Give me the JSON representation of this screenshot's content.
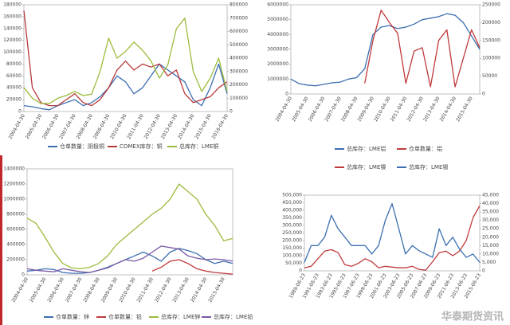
{
  "chart_data": [
    {
      "type": "line",
      "categories": [
        "2004-04-30",
        null,
        "2005-04-30",
        null,
        "2006-04-30",
        null,
        "2007-04-30",
        null,
        "2008-04-30",
        null,
        "2009-04-30",
        null,
        "2010-04-30",
        null,
        "2011-04-30",
        null,
        "2012-04-30",
        null,
        "2013-04-30",
        null,
        "2014-04-30",
        null,
        "2015-04-30",
        null,
        "2016-04-30"
      ],
      "ylim": [
        0,
        180000
      ],
      "yticks": [
        0,
        20000,
        40000,
        60000,
        80000,
        100000,
        120000,
        140000,
        160000,
        180000
      ],
      "y2lim": [
        0,
        800000
      ],
      "y2ticks": [
        0,
        100000,
        200000,
        300000,
        400000,
        500000,
        600000,
        700000,
        800000
      ],
      "legend": "bottom",
      "series": [
        {
          "name": "仓单数量：阴极铜",
          "color": "#3c6fb0",
          "values": [
            10000,
            8000,
            5000,
            3000,
            10000,
            15000,
            20000,
            10000,
            15000,
            25000,
            40000,
            60000,
            50000,
            30000,
            40000,
            60000,
            80000,
            70000,
            60000,
            50000,
            20000,
            10000,
            40000,
            80000,
            30000
          ]
        },
        {
          "name": "COMEX库存：铜",
          "color": "#b8383a",
          "values": [
            170000,
            40000,
            15000,
            10000,
            10000,
            20000,
            30000,
            15000,
            10000,
            20000,
            40000,
            70000,
            85000,
            70000,
            80000,
            75000,
            80000,
            60000,
            70000,
            30000,
            15000,
            20000,
            25000,
            40000,
            50000
          ]
        },
        {
          "name": "总库存：LME铜",
          "color": "#9bbb3b",
          "axis": "y2",
          "values": [
            180000,
            100000,
            60000,
            60000,
            100000,
            120000,
            150000,
            120000,
            130000,
            300000,
            550000,
            400000,
            450000,
            520000,
            460000,
            380000,
            250000,
            350000,
            620000,
            700000,
            300000,
            150000,
            250000,
            400000,
            150000
          ]
        }
      ]
    },
    {
      "type": "line",
      "categories": [
        "2004-04-30",
        null,
        "2005-04-30",
        null,
        "2006-04-30",
        null,
        "2007-04-30",
        null,
        "2008-04-30",
        null,
        "2009-04-30",
        null,
        "2010-04-30",
        null,
        "2011-04-30",
        null,
        "2012-04-30",
        null,
        "2013-04-30",
        null,
        "2014-04-30",
        null,
        "2015-04-30",
        null
      ],
      "ylim": [
        0,
        6000000
      ],
      "yticks": [
        0,
        1000000,
        2000000,
        3000000,
        4000000,
        5000000,
        6000000
      ],
      "y2lim": [
        0,
        250000
      ],
      "y2ticks": [
        0,
        50000,
        100000,
        150000,
        200000,
        250000
      ],
      "legend": "bottom",
      "series": [
        {
          "name": "总库存：LME铝",
          "color": "#3c6fb0",
          "values": [
            1000000,
            700000,
            600000,
            550000,
            650000,
            750000,
            800000,
            1000000,
            1100000,
            1700000,
            4000000,
            4500000,
            4600000,
            4400000,
            4500000,
            4700000,
            5000000,
            5100000,
            5200000,
            5400000,
            5300000,
            4800000,
            3900000,
            3000000
          ]
        },
        {
          "name": "仓单数量：铝",
          "color": "#c0393b",
          "axis": "y2",
          "values": [
            null,
            null,
            null,
            null,
            null,
            null,
            null,
            null,
            null,
            30000,
            150000,
            235000,
            200000,
            170000,
            30000,
            120000,
            130000,
            20000,
            150000,
            180000,
            20000,
            100000,
            180000,
            130000
          ]
        }
      ]
    },
    {
      "type": "line",
      "categories": [
        "2004-04-30",
        null,
        "2005-04-30",
        null,
        "2006-04-30",
        null,
        "2007-04-30",
        null,
        "2008-04-30",
        null,
        "2009-04-30",
        null,
        "2010-04-30",
        null,
        "2011-04-30",
        null,
        "2012-04-30",
        null,
        "2013-04-30",
        null,
        "2014-04-30",
        null,
        "2015-04-30",
        null
      ],
      "ylim": [
        0,
        1400000
      ],
      "yticks": [
        0,
        200000,
        400000,
        600000,
        800000,
        1000000,
        1200000,
        1400000
      ],
      "legend": "bottom",
      "series": [
        {
          "name": "仓单数量：锌",
          "color": "#3c6fb0",
          "values": [
            50000,
            60000,
            80000,
            70000,
            30000,
            20000,
            20000,
            30000,
            60000,
            100000,
            150000,
            200000,
            250000,
            300000,
            250000,
            180000,
            300000,
            350000,
            320000,
            280000,
            200000,
            150000,
            180000,
            150000
          ]
        },
        {
          "name": "仓单数量：铅",
          "color": "#c0393b",
          "values": [
            null,
            null,
            null,
            null,
            null,
            null,
            null,
            null,
            null,
            null,
            null,
            null,
            null,
            null,
            50000,
            100000,
            180000,
            200000,
            150000,
            80000,
            50000,
            30000,
            20000,
            10000
          ]
        },
        {
          "name": "总库存：LME锌",
          "color": "#9bbb3b",
          "values": [
            750000,
            680000,
            500000,
            300000,
            150000,
            90000,
            80000,
            100000,
            150000,
            250000,
            400000,
            500000,
            600000,
            700000,
            800000,
            880000,
            1000000,
            1200000,
            1100000,
            1000000,
            800000,
            650000,
            450000,
            480000
          ]
        },
        {
          "name": "总库存：LME铅",
          "color": "#7a5aa6",
          "values": [
            80000,
            60000,
            50000,
            40000,
            80000,
            60000,
            40000,
            30000,
            60000,
            90000,
            150000,
            200000,
            180000,
            220000,
            300000,
            380000,
            360000,
            340000,
            250000,
            220000,
            200000,
            210000,
            200000,
            180000
          ]
        }
      ]
    },
    {
      "type": "line",
      "categories": [
        "1989-06-23",
        null,
        "1991-06-23",
        null,
        "1993-06-23",
        null,
        "1995-06-23",
        null,
        "1997-06-23",
        null,
        "1999-06-23",
        null,
        "2001-06-23",
        null,
        "2003-06-23",
        null,
        "2005-06-23",
        null,
        "2007-06-23",
        null,
        "2009-06-23",
        null,
        "2011-06-23",
        null,
        "2013-06-23",
        null,
        "2015-06-23"
      ],
      "ylim": [
        0,
        500000
      ],
      "yticks": [
        0,
        {
          "value": 50000,
          "label": "50,000"
        },
        {
          "value": 100000,
          "label": "100,000"
        },
        {
          "value": 150000,
          "label": "150,000"
        },
        {
          "value": 200000,
          "label": "200,000"
        },
        {
          "value": 250000,
          "label": "250,000"
        },
        {
          "value": 300000,
          "label": "300,000"
        },
        {
          "value": 350000,
          "label": "350,000"
        },
        {
          "value": 400000,
          "label": "400,000"
        },
        {
          "value": 450000,
          "label": "450,000"
        },
        {
          "value": 500000,
          "label": "500,000"
        }
      ],
      "y2lim": [
        0,
        45000
      ],
      "y2ticks": [
        0,
        {
          "value": 5000,
          "label": "5,000"
        },
        {
          "value": 10000,
          "label": "10,000"
        },
        {
          "value": 15000,
          "label": "15,000"
        },
        {
          "value": 20000,
          "label": "20,000"
        },
        {
          "value": 25000,
          "label": "25,000"
        },
        {
          "value": 30000,
          "label": "30,000"
        },
        {
          "value": 35000,
          "label": "35,000"
        },
        {
          "value": 40000,
          "label": "40,000"
        },
        {
          "value": 45000,
          "label": "45,000"
        }
      ],
      "legend": "top",
      "series": [
        {
          "name": "总库存：LME镍",
          "color": "#c0393b",
          "values": [
            20000,
            30000,
            80000,
            130000,
            140000,
            120000,
            40000,
            30000,
            50000,
            80000,
            60000,
            20000,
            30000,
            25000,
            20000,
            20000,
            30000,
            10000,
            5000,
            60000,
            120000,
            130000,
            100000,
            130000,
            200000,
            350000,
            430000
          ]
        },
        {
          "name": "总库存：LME锡",
          "color": "#3c6fb0",
          "axis": "y2",
          "values": [
            5000,
            15000,
            15000,
            20000,
            33000,
            25000,
            20000,
            15000,
            15000,
            15000,
            10000,
            15000,
            30000,
            40000,
            25000,
            10000,
            15000,
            12000,
            10000,
            8000,
            25000,
            15000,
            20000,
            13000,
            8000,
            10000,
            5000
          ]
        }
      ]
    }
  ],
  "watermark": "华泰期货资讯"
}
